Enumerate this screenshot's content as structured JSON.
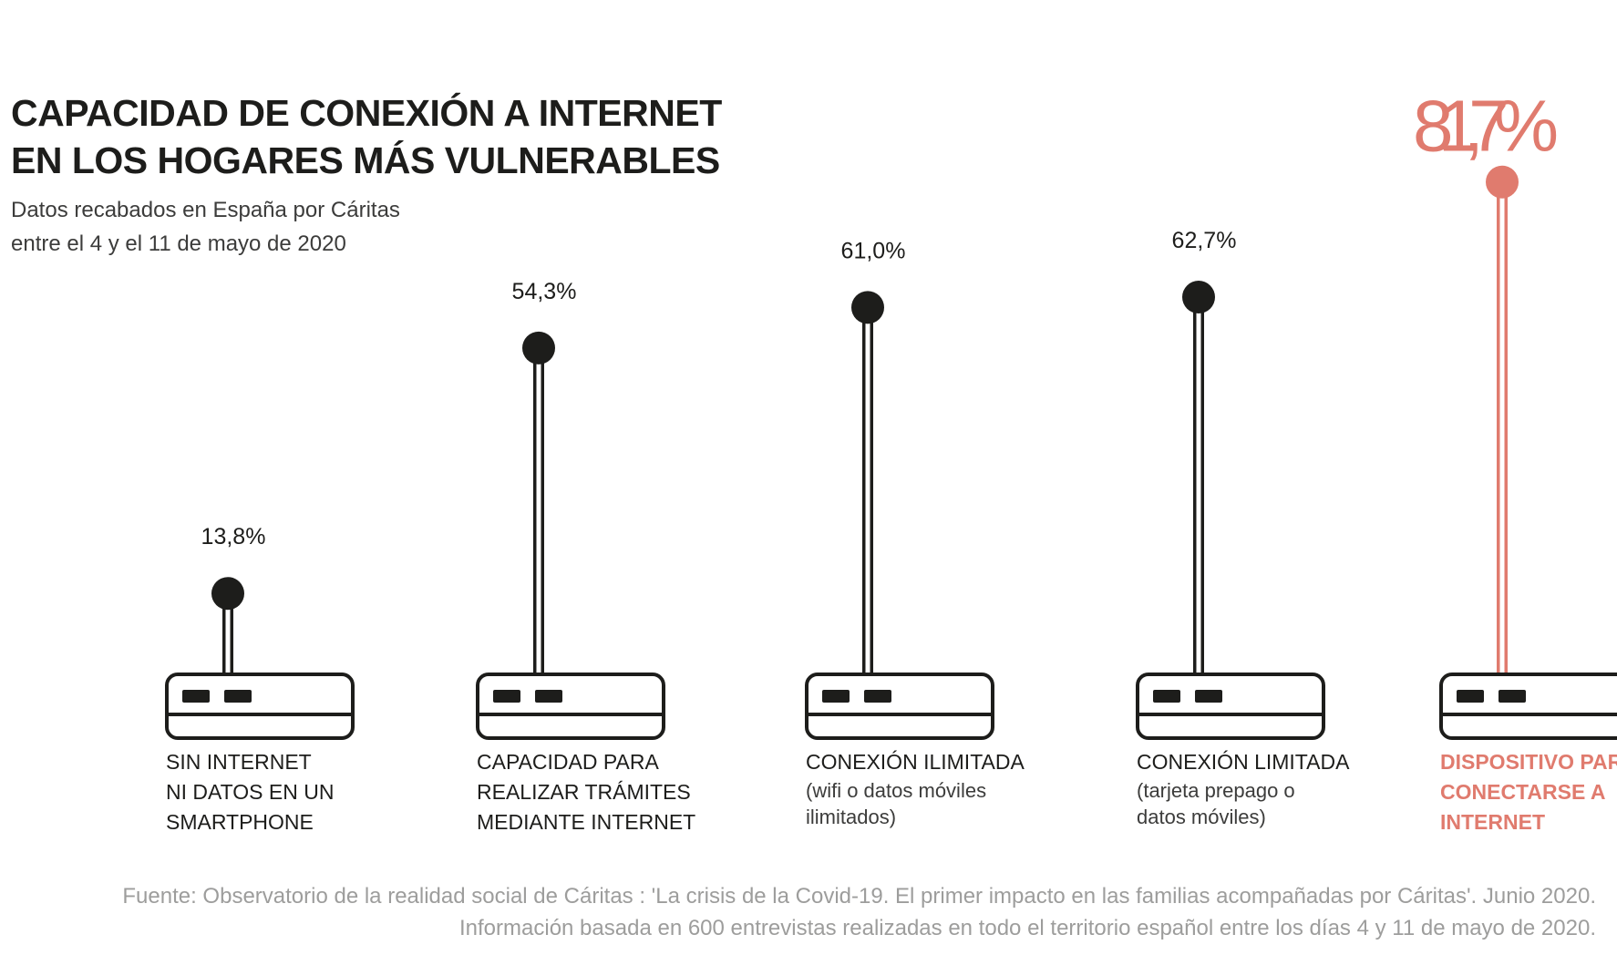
{
  "title_lines": [
    "CAPACIDAD DE CONEXIÓN A INTERNET",
    "EN LOS HOGARES MÁS VULNERABLES"
  ],
  "subtitle_lines": [
    "Datos recabados en España por Cáritas",
    "entre el 4 y el 11 de mayo de 2020"
  ],
  "source_lines": [
    "Fuente: Observatorio de la realidad social de Cáritas : 'La crisis de la Covid-19. El primer impacto en las familias acompañadas por Cáritas'. Junio 2020.",
    "Información basada en 600 entrevistas realizadas en todo el territorio español entre los días 4 y 11 de mayo de 2020."
  ],
  "colors": {
    "dark": "#1d1d1b",
    "highlight": "#e07b6e",
    "source": "#9d9d9c"
  },
  "icon": "router-icon",
  "chart_data": {
    "type": "bar",
    "unit": "%",
    "ylim": [
      0,
      100
    ],
    "categories": [
      {
        "label_lines": [
          "SIN INTERNET",
          "NI DATOS EN UN",
          "SMARTPHONE"
        ],
        "note_lines": [],
        "value": 13.8,
        "value_label": "13,8%",
        "highlight": false
      },
      {
        "label_lines": [
          "CAPACIDAD PARA",
          "REALIZAR TRÁMITES",
          "MEDIANTE INTERNET"
        ],
        "note_lines": [],
        "value": 54.3,
        "value_label": "54,3%",
        "highlight": false
      },
      {
        "label_lines": [
          "CONEXIÓN ILIMITADA"
        ],
        "note_lines": [
          "(wifi o datos móviles",
          "ilimitados)"
        ],
        "value": 61.0,
        "value_label": "61,0%",
        "highlight": false
      },
      {
        "label_lines": [
          "CONEXIÓN LIMITADA"
        ],
        "note_lines": [
          "(tarjeta prepago o",
          "datos móviles)"
        ],
        "value": 62.7,
        "value_label": "62,7%",
        "highlight": false
      },
      {
        "label_lines": [
          "DISPOSITIVO PARA",
          "CONECTARSE A",
          "INTERNET"
        ],
        "note_lines": [],
        "value": 81.7,
        "value_label": "81,7%",
        "highlight": true
      }
    ]
  }
}
